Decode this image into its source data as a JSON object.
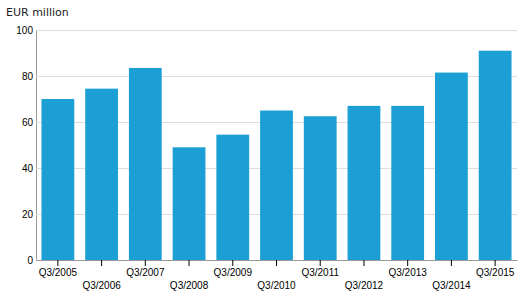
{
  "chart_data": {
    "type": "bar",
    "ylabel": "EUR million",
    "categories": [
      "Q3/2005",
      "Q3/2006",
      "Q3/2007",
      "Q3/2008",
      "Q3/2009",
      "Q3/2010",
      "Q3/2011",
      "Q3/2012",
      "Q3/2013",
      "Q3/2014",
      "Q3/2015"
    ],
    "values": [
      70,
      74.5,
      83.5,
      49,
      54.5,
      65,
      62.5,
      67,
      67,
      81.5,
      91
    ],
    "color": "#1c9fd5",
    "ylim": [
      0,
      100
    ],
    "yticks": [
      0,
      20,
      40,
      60,
      80,
      100
    ],
    "grid": true
  }
}
